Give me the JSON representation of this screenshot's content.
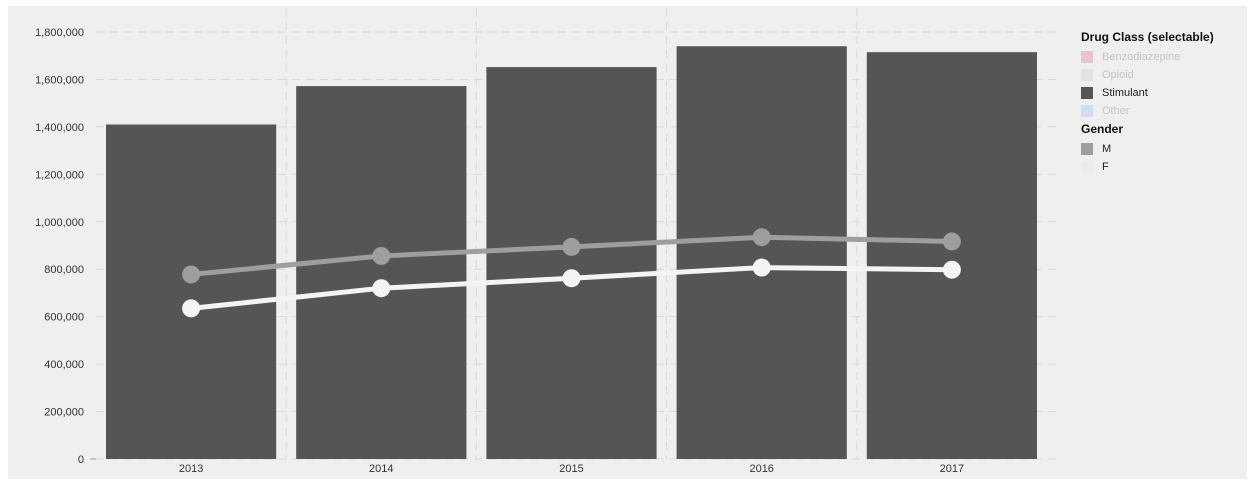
{
  "chart_data": {
    "type": "bar",
    "categories": [
      "2013",
      "2014",
      "2015",
      "2016",
      "2017"
    ],
    "bar_series": {
      "name": "Stimulant",
      "values": [
        1410000,
        1572000,
        1652000,
        1740000,
        1715000
      ],
      "color": "#555555"
    },
    "line_series": [
      {
        "name": "M",
        "values": [
          778000,
          856000,
          894000,
          935000,
          917000
        ],
        "color": "#9e9e9e"
      },
      {
        "name": "F",
        "values": [
          635000,
          720000,
          762000,
          807000,
          798000
        ],
        "color": "#f4f4f4"
      }
    ],
    "y_ticks": [
      "0",
      "200,000",
      "400,000",
      "600,000",
      "800,000",
      "1,000,000",
      "1,200,000",
      "1,400,000",
      "1,600,000",
      "1,800,000"
    ],
    "ylim": [
      0,
      1800000
    ],
    "grid": true,
    "plot_background": "#efefef",
    "legend_placement": "right",
    "legends": [
      {
        "title": "Drug Class (selectable)",
        "items": [
          {
            "label": "Benzodiazepine",
            "color": "#e8c4cc",
            "active": false
          },
          {
            "label": "Opioid",
            "color": "#e3e3e3",
            "active": false
          },
          {
            "label": "Stimulant",
            "color": "#555555",
            "active": true
          },
          {
            "label": "Other",
            "color": "#cfdfee",
            "active": false
          }
        ]
      },
      {
        "title": "Gender",
        "items": [
          {
            "label": "M",
            "color": "#9e9e9e",
            "active": true
          },
          {
            "label": "F",
            "color": "#ececec",
            "active": true
          }
        ]
      }
    ]
  }
}
